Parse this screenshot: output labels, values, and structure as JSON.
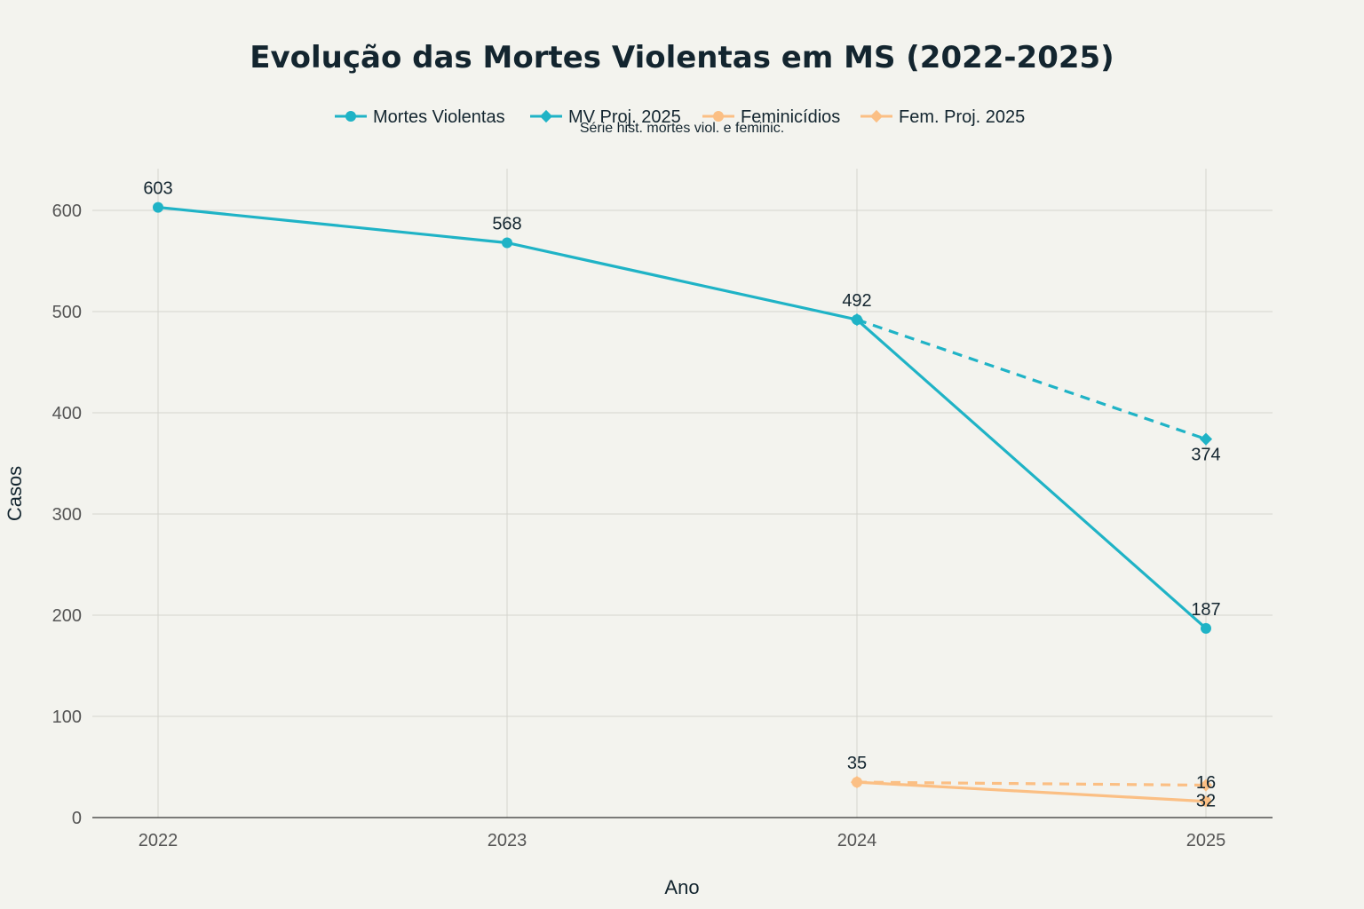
{
  "chart_data": {
    "type": "line",
    "title": "Evolução das Mortes Violentas em MS (2022-2025)",
    "subtitle": "Série hist. mortes viol. e feminic.",
    "xlabel": "Ano",
    "ylabel": "Casos",
    "x_ticks": [
      "2022",
      "2023",
      "2024",
      "2025"
    ],
    "y_ticks": [
      0,
      100,
      200,
      300,
      400,
      500,
      600
    ],
    "ylim": [
      0,
      640
    ],
    "grid": true,
    "legend_position": "top-center",
    "series": [
      {
        "name": "Mortes Violentas",
        "x": [
          2022,
          2023,
          2024,
          2025
        ],
        "y": [
          603,
          568,
          492,
          187
        ],
        "color": "#1fb3c6",
        "marker": "circle",
        "dash": "solid",
        "label_pos": [
          "above",
          "above",
          "above",
          "above"
        ]
      },
      {
        "name": "MV Proj. 2025",
        "x": [
          2024,
          2025
        ],
        "y": [
          492,
          374
        ],
        "color": "#1fb3c6",
        "marker": "diamond",
        "dash": "dashed",
        "label_pos": [
          "none",
          "below"
        ]
      },
      {
        "name": "Feminicídios",
        "x": [
          2024,
          2025
        ],
        "y": [
          35,
          16
        ],
        "color": "#fbbf84",
        "marker": "circle",
        "dash": "solid",
        "label_pos": [
          "above",
          "above"
        ]
      },
      {
        "name": "Fem. Proj. 2025",
        "x": [
          2024,
          2025
        ],
        "y": [
          35,
          32
        ],
        "color": "#fbbf84",
        "marker": "diamond",
        "dash": "dashed",
        "label_pos": [
          "none",
          "below"
        ]
      }
    ]
  }
}
